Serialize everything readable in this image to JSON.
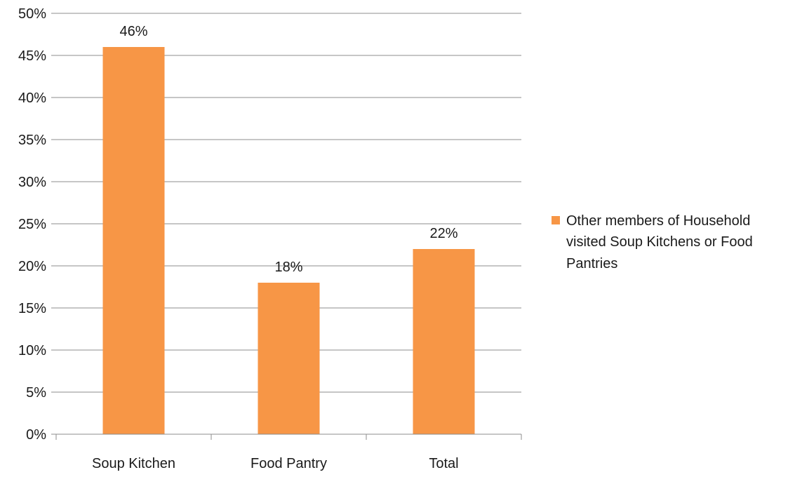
{
  "chart_data": {
    "type": "bar",
    "categories": [
      "Soup Kitchen",
      "Food Pantry",
      "Total"
    ],
    "series": [
      {
        "name": "Other members of Household visited Soup Kitchens or Food Pantries",
        "values": [
          46,
          18,
          22
        ],
        "data_labels": [
          "46%",
          "18%",
          "22%"
        ],
        "color": "#f79646"
      }
    ],
    "ylim": [
      0,
      50
    ],
    "yticks": [
      0,
      5,
      10,
      15,
      20,
      25,
      30,
      35,
      40,
      45,
      50
    ],
    "ytick_labels": [
      "0%",
      "5%",
      "10%",
      "15%",
      "20%",
      "25%",
      "30%",
      "35%",
      "40%",
      "45%",
      "50%"
    ],
    "grid": true,
    "legend_position": "right",
    "legend_lines": [
      "Other members of Household",
      "visited Soup Kitchens or Food",
      "Pantries"
    ]
  }
}
